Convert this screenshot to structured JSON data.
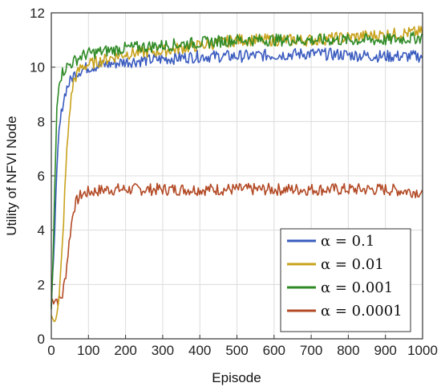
{
  "chart_data": {
    "type": "line",
    "title": "",
    "xlabel": "Episode",
    "ylabel": "Utility of NFVI Node",
    "xlim": [
      0,
      1000
    ],
    "ylim": [
      0,
      12
    ],
    "xticks": [
      "0",
      "100",
      "200",
      "300",
      "400",
      "500",
      "600",
      "700",
      "800",
      "900",
      "1000"
    ],
    "yticks": [
      "0",
      "2",
      "4",
      "6",
      "8",
      "10",
      "12"
    ],
    "grid": true,
    "legend_position": "bottom-right",
    "series": [
      {
        "name": "α = 0.1",
        "color": "#3a5bbf",
        "x": [
          0,
          10,
          20,
          30,
          40,
          60,
          80,
          100,
          150,
          200,
          300,
          400,
          500,
          600,
          700,
          800,
          900,
          1000
        ],
        "y": [
          1.0,
          4.5,
          7.5,
          8.6,
          9.2,
          9.7,
          9.9,
          10.0,
          10.1,
          10.2,
          10.3,
          10.4,
          10.4,
          10.45,
          10.5,
          10.45,
          10.4,
          10.4
        ]
      },
      {
        "name": "α = 0.01",
        "color": "#c8a21c",
        "x": [
          0,
          10,
          20,
          30,
          40,
          50,
          60,
          80,
          100,
          150,
          200,
          300,
          400,
          500,
          600,
          700,
          800,
          900,
          1000
        ],
        "y": [
          0.7,
          0.8,
          1.2,
          3.5,
          6.5,
          8.5,
          9.5,
          10.0,
          10.1,
          10.3,
          10.5,
          10.6,
          10.8,
          11.0,
          11.0,
          11.0,
          11.1,
          11.2,
          11.3
        ]
      },
      {
        "name": "α = 0.001",
        "color": "#2e8a26",
        "x": [
          0,
          5,
          10,
          15,
          20,
          30,
          40,
          60,
          80,
          100,
          150,
          200,
          300,
          400,
          500,
          600,
          700,
          800,
          900,
          1000
        ],
        "y": [
          1.0,
          3.0,
          6.0,
          8.5,
          9.5,
          9.8,
          10.0,
          10.2,
          10.4,
          10.5,
          10.6,
          10.7,
          10.8,
          10.9,
          11.0,
          11.0,
          11.0,
          11.0,
          11.0,
          11.1
        ]
      },
      {
        "name": "α = 0.0001",
        "color": "#b34a26",
        "x": [
          0,
          10,
          20,
          30,
          40,
          50,
          60,
          70,
          80,
          100,
          150,
          200,
          300,
          400,
          500,
          600,
          700,
          800,
          900,
          1000
        ],
        "y": [
          1.4,
          1.5,
          1.4,
          1.6,
          2.5,
          3.8,
          4.8,
          5.1,
          5.3,
          5.4,
          5.5,
          5.5,
          5.5,
          5.5,
          5.5,
          5.5,
          5.5,
          5.5,
          5.5,
          5.4
        ]
      }
    ]
  }
}
